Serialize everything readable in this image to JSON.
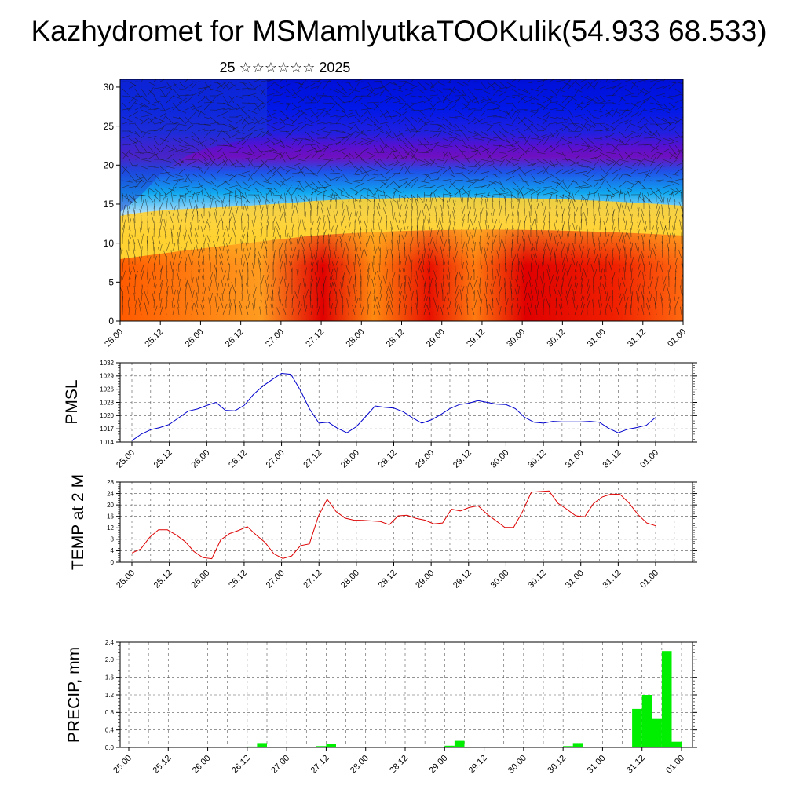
{
  "title": "Kazhydromet for MSMamlyutkaTOOKulik(54.933 68.533)",
  "subtitle": "25 ☆☆☆☆☆☆ 2025",
  "colors": {
    "pmsl": "#0000cc",
    "temp": "#dd0000",
    "precip": "#00ee00"
  },
  "chart_data": [
    {
      "type": "heatmap",
      "name": "temperature-wind-profile",
      "x_ticks": [
        "25.00",
        "25.12",
        "26.00",
        "26.12",
        "27.00",
        "27.12",
        "28.00",
        "28.12",
        "29.00",
        "29.12",
        "30.00",
        "30.12",
        "31.00",
        "31.12",
        "01.00"
      ],
      "y_ticks": [
        0,
        5,
        10,
        15,
        20,
        25,
        30
      ],
      "ylim": [
        0,
        31
      ]
    },
    {
      "type": "line",
      "ylabel": "PMSL",
      "ylim": [
        1014,
        1032
      ],
      "y_ticks": [
        1014,
        1017,
        1020,
        1023,
        1026,
        1029,
        1032
      ],
      "x_ticks": [
        "25.00",
        "25.12",
        "26.00",
        "26.12",
        "27.00",
        "27.12",
        "28.00",
        "28.12",
        "29.00",
        "29.12",
        "30.00",
        "30.12",
        "31.00",
        "31.12",
        "01.00"
      ],
      "values": [
        1014.3,
        1015.8,
        1016.8,
        1017.3,
        1018.0,
        1019.5,
        1021.0,
        1021.5,
        1022.3,
        1023.0,
        1021.2,
        1021.1,
        1022.3,
        1024.8,
        1026.7,
        1028.2,
        1029.6,
        1029.4,
        1025.8,
        1021.5,
        1018.3,
        1018.5,
        1017.1,
        1016.1,
        1017.5,
        1019.8,
        1022.2,
        1021.9,
        1021.7,
        1020.9,
        1019.5,
        1018.3,
        1019.0,
        1020.2,
        1021.6,
        1022.5,
        1022.8,
        1023.4,
        1023.0,
        1022.6,
        1022.5,
        1021.6,
        1019.6,
        1018.5,
        1018.3,
        1018.7,
        1018.6,
        1018.6,
        1018.6,
        1018.7,
        1018.5,
        1017.1,
        1016.1,
        1016.9,
        1017.3,
        1017.8,
        1019.6
      ]
    },
    {
      "type": "line",
      "ylabel": "TEMP at 2 M",
      "ylim": [
        0,
        28
      ],
      "y_ticks": [
        0,
        4,
        8,
        12,
        16,
        20,
        24,
        28
      ],
      "x_ticks": [
        "25.00",
        "25.12",
        "26.00",
        "26.12",
        "27.00",
        "27.12",
        "28.00",
        "28.12",
        "29.00",
        "29.12",
        "30.00",
        "30.12",
        "31.00",
        "31.12",
        "01.00"
      ],
      "values": [
        3.2,
        4.6,
        8.7,
        11.3,
        11.3,
        9.5,
        7.2,
        3.7,
        1.6,
        1.2,
        7.8,
        10.0,
        11.1,
        12.4,
        9.5,
        6.9,
        2.9,
        1.3,
        2.2,
        5.8,
        6.4,
        16.0,
        22.0,
        17.7,
        15.4,
        14.7,
        14.6,
        14.4,
        14.2,
        13.1,
        16.2,
        16.4,
        15.3,
        14.7,
        13.4,
        13.7,
        18.5,
        17.9,
        19.1,
        19.7,
        16.8,
        14.5,
        12.2,
        12.1,
        17.6,
        24.5,
        24.7,
        24.9,
        20.6,
        18.5,
        16.2,
        15.8,
        20.5,
        22.8,
        23.8,
        23.7,
        20.7,
        16.7,
        13.7,
        12.7
      ]
    },
    {
      "type": "bar",
      "ylabel": "PRECIP, mm",
      "ylim": [
        0,
        2.4
      ],
      "y_ticks": [
        "0.0",
        "0.4",
        "0.8",
        "1.2",
        "1.6",
        "2.0",
        "2.4"
      ],
      "x_ticks": [
        "25.00",
        "25.12",
        "26.00",
        "26.12",
        "27.00",
        "27.12",
        "28.00",
        "28.12",
        "29.00",
        "29.12",
        "30.00",
        "30.12",
        "31.00",
        "31.12",
        "01.00"
      ],
      "values": [
        0,
        0,
        0,
        0,
        0,
        0,
        0,
        0,
        0,
        0,
        0,
        0,
        0.02,
        0.1,
        0,
        0,
        0,
        0,
        0,
        0.03,
        0.08,
        0,
        0,
        0,
        0,
        0,
        0.01,
        0,
        0,
        0,
        0,
        0,
        0.04,
        0.15,
        0,
        0,
        0,
        0,
        0,
        0,
        0,
        0,
        0,
        0,
        0.03,
        0.1,
        0,
        0,
        0,
        0,
        0,
        0.88,
        1.2,
        0.65,
        2.2,
        0.13
      ]
    }
  ]
}
